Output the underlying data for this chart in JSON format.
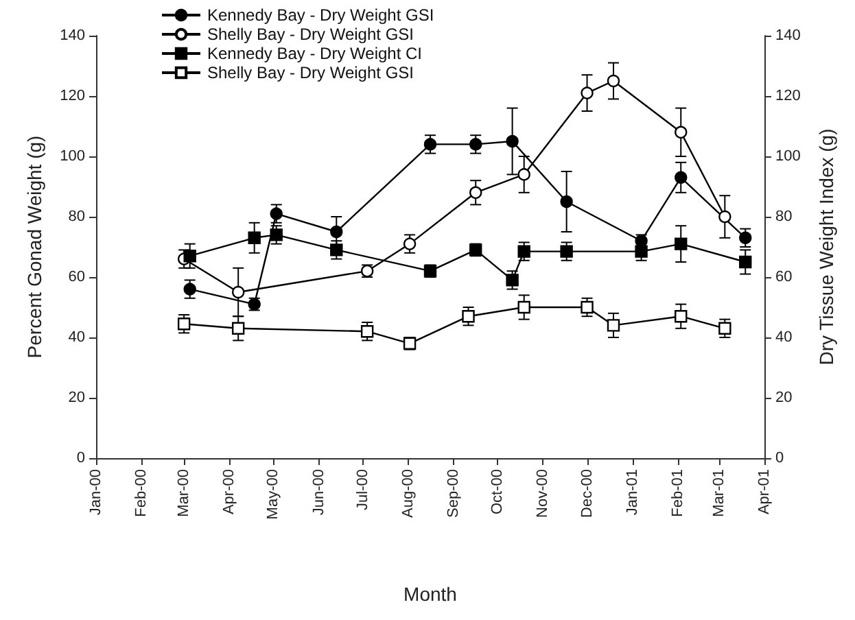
{
  "chart_data": {
    "type": "line",
    "xlabel": "Month",
    "ylabel": "Percent Gonad Weight (g)",
    "y2label": "Dry Tissue Weight Index (g)",
    "xlim": [
      "2000-01-01",
      "2001-04-01"
    ],
    "xticks": [
      {
        "value": "2000-01-01",
        "label": "Jan-00"
      },
      {
        "value": "2000-02-01",
        "label": "Feb-00"
      },
      {
        "value": "2000-03-01",
        "label": "Mar-00"
      },
      {
        "value": "2000-04-01",
        "label": "Apr-00"
      },
      {
        "value": "2000-05-01",
        "label": "May-00"
      },
      {
        "value": "2000-06-01",
        "label": "Jun-00"
      },
      {
        "value": "2000-07-01",
        "label": "Jul-00"
      },
      {
        "value": "2000-08-01",
        "label": "Aug-00"
      },
      {
        "value": "2000-09-01",
        "label": "Sep-00"
      },
      {
        "value": "2000-10-01",
        "label": "Oct-00"
      },
      {
        "value": "2000-11-01",
        "label": "Nov-00"
      },
      {
        "value": "2000-12-01",
        "label": "Dec-00"
      },
      {
        "value": "2001-01-01",
        "label": "Jan-01"
      },
      {
        "value": "2001-02-01",
        "label": "Feb-01"
      },
      {
        "value": "2001-03-01",
        "label": "Mar-01"
      },
      {
        "value": "2001-04-01",
        "label": "Apr-01"
      }
    ],
    "ylim": [
      0,
      140
    ],
    "yticks": [
      0,
      20,
      40,
      60,
      80,
      100,
      120,
      140
    ],
    "y2lim": [
      0,
      140
    ],
    "y2ticks": [
      0,
      20,
      40,
      60,
      80,
      100,
      120,
      140
    ],
    "grid": false,
    "legend": "top left",
    "line_style": "solid",
    "series": [
      {
        "name": "Kennedy Bay - Dry Weight GSI",
        "color": "#000000",
        "marker": "circle",
        "x": [
          "2000-03-05",
          "2000-04-18",
          "2000-05-03",
          "2000-06-13",
          "2000-08-16",
          "2000-09-16",
          "2000-10-11",
          "2000-11-17",
          "2001-01-07",
          "2001-02-03",
          "2001-03-19"
        ],
        "values": [
          56,
          51,
          81,
          75,
          104,
          104,
          105,
          85,
          72,
          93,
          73
        ],
        "errors": [
          3,
          2,
          3,
          5,
          3,
          3,
          11,
          10,
          2,
          5,
          3
        ]
      },
      {
        "name": "Shelly Bay - Dry Weight GSI",
        "color": "#ffffff",
        "marker": "circle",
        "x": [
          "2000-03-01",
          "2000-04-07",
          "2000-07-04",
          "2000-08-02",
          "2000-09-16",
          "2000-10-19",
          "2000-12-01",
          "2000-12-19",
          "2001-02-03",
          "2001-03-05"
        ],
        "values": [
          66,
          55,
          62,
          71,
          88,
          94,
          121,
          125,
          108,
          80
        ],
        "errors": [
          3,
          8,
          2,
          3,
          4,
          6,
          6,
          6,
          8,
          7
        ]
      },
      {
        "name": "Kennedy Bay - Dry Weight CI",
        "color": "#000000",
        "marker": "square",
        "x": [
          "2000-03-05",
          "2000-04-18",
          "2000-05-03",
          "2000-06-13",
          "2000-08-16",
          "2000-09-16",
          "2000-10-11",
          "2000-10-19",
          "2000-11-17",
          "2001-01-07",
          "2001-02-03",
          "2001-03-19"
        ],
        "values": [
          67,
          73,
          74,
          69,
          62,
          69,
          59,
          68.5,
          68.5,
          68.5,
          71,
          65
        ],
        "errors": [
          4,
          5,
          3,
          3,
          2,
          2,
          3,
          3,
          3,
          3,
          6,
          4
        ]
      },
      {
        "name": "Shelly Bay - Dry Weight GSI",
        "color": "#ffffff",
        "marker": "square",
        "x": [
          "2000-03-01",
          "2000-04-07",
          "2000-07-04",
          "2000-08-02",
          "2000-09-11",
          "2000-10-19",
          "2000-12-01",
          "2000-12-19",
          "2001-02-03",
          "2001-03-05"
        ],
        "values": [
          44.5,
          43,
          42,
          38,
          47,
          50,
          50,
          44,
          47,
          43
        ],
        "errors": [
          3,
          4,
          3,
          2,
          3,
          4,
          3,
          4,
          4,
          3
        ]
      }
    ]
  }
}
